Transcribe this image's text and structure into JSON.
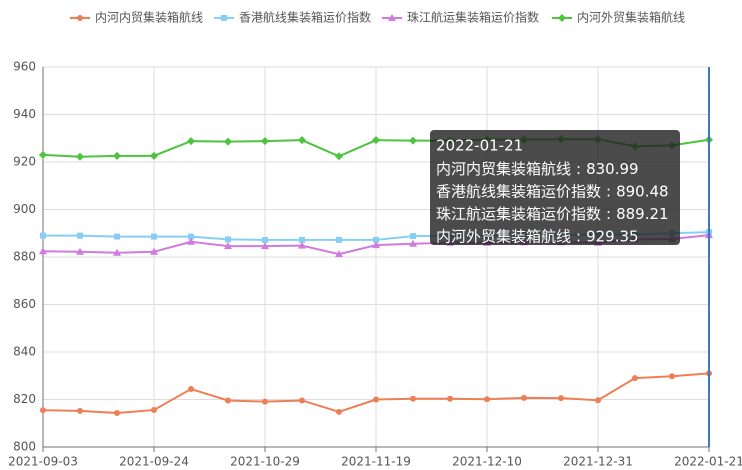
{
  "chart_data": {
    "type": "line",
    "categories": [
      "2021-09-03",
      null,
      null,
      "2021-09-24",
      null,
      null,
      "2021-10-29",
      null,
      null,
      "2021-11-19",
      null,
      null,
      "2021-12-10",
      null,
      null,
      "2021-12-31",
      null,
      null,
      "2022-01-21"
    ],
    "series": [
      {
        "name": "内河内贸集装箱航线",
        "color": "#ee7f55",
        "symbol": "circle",
        "values": [
          815.5,
          815.2,
          814.3,
          815.6,
          824.4,
          819.6,
          819.1,
          819.6,
          814.8,
          820,
          820.3,
          820.3,
          820.1,
          820.7,
          820.6,
          819.7,
          829,
          829.8,
          830.99
        ]
      },
      {
        "name": "香港航线集装箱运价指数",
        "color": "#87cef5",
        "symbol": "square",
        "values": [
          889,
          889,
          888.6,
          888.6,
          888.6,
          887.4,
          887.2,
          887.2,
          887.2,
          887.2,
          888.8,
          889,
          889,
          889.2,
          889.2,
          889.4,
          889.5,
          890,
          890.48
        ]
      },
      {
        "name": "珠江航运集装箱运价指数",
        "color": "#d07cdc",
        "symbol": "triangle",
        "values": [
          882.4,
          882.2,
          881.8,
          882.2,
          886.4,
          884.6,
          884.6,
          884.8,
          881.2,
          885,
          885.6,
          886,
          886,
          886.2,
          886.2,
          886,
          887.4,
          887.6,
          889.21
        ]
      },
      {
        "name": "内河外贸集装箱航线",
        "color": "#4cc43c",
        "symbol": "diamond",
        "values": [
          923,
          922.2,
          922.6,
          922.6,
          928.8,
          928.6,
          928.8,
          929.2,
          922.4,
          929.2,
          929,
          929,
          929.4,
          929.4,
          929.6,
          929.6,
          926.6,
          927,
          929.35
        ]
      }
    ],
    "ylim": [
      800,
      960
    ],
    "yticks": [
      800,
      820,
      840,
      860,
      880,
      900,
      920,
      940,
      960
    ],
    "grid": true,
    "tooltip": {
      "index": 18,
      "separator": ":"
    }
  }
}
